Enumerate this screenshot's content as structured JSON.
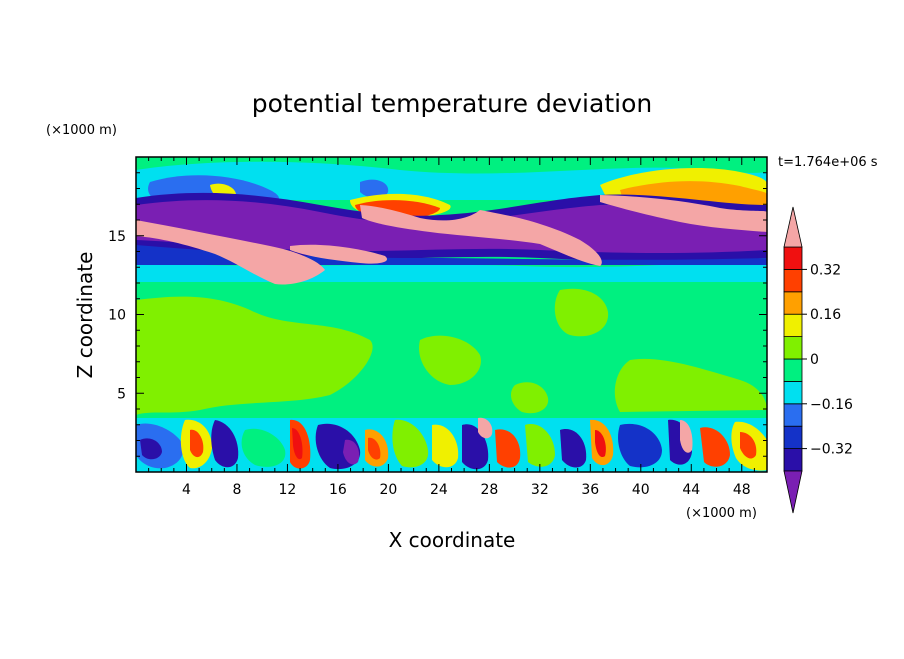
{
  "chart_data": {
    "type": "heatmap",
    "title": "potential temperature deviation",
    "xlabel": "X coordinate",
    "ylabel": "Z coordinate",
    "x_unit_label": "(×1000 m)",
    "y_unit_label": "(×1000 m)",
    "time_label": "t=1.764e+06 s",
    "xlim": [
      0,
      50
    ],
    "ylim": [
      0,
      20
    ],
    "x_ticks": [
      4,
      8,
      12,
      16,
      20,
      24,
      28,
      32,
      36,
      40,
      44,
      48
    ],
    "x_tick_labels": [
      "4",
      "8",
      "12",
      "16",
      "20",
      "24",
      "28",
      "32",
      "36",
      "40",
      "44",
      "48"
    ],
    "y_ticks": [
      5,
      10,
      15
    ],
    "y_tick_labels": [
      "5",
      "10",
      "15"
    ],
    "colorbar": {
      "levels": [
        -0.4,
        -0.32,
        -0.24,
        -0.16,
        -0.08,
        0,
        0.08,
        0.16,
        0.24,
        0.32,
        0.4
      ],
      "tick_values": [
        0.32,
        0.16,
        0,
        -0.16,
        -0.32
      ],
      "tick_labels": [
        "0.32",
        "0.16",
        "0",
        "−0.16",
        "−0.32"
      ],
      "under_color": "#7a1fb3",
      "over_color": "#f4a6a6",
      "colors": [
        "#2a0fa8",
        "#1432c8",
        "#2a6ef0",
        "#00e0f0",
        "#00f080",
        "#80f000",
        "#f0f000",
        "#ffa000",
        "#ff4000",
        "#f01010"
      ]
    }
  }
}
